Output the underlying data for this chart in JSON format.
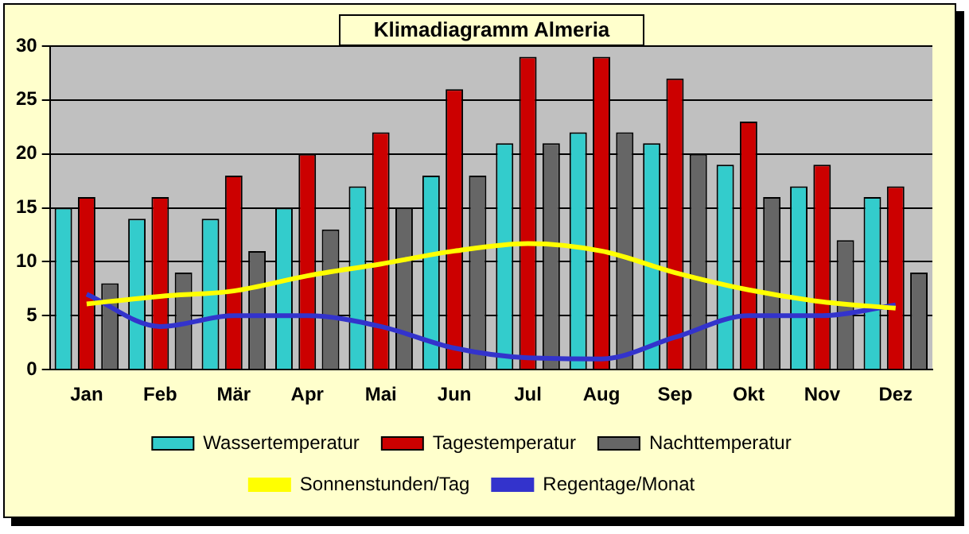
{
  "chart_data": {
    "type": "bar",
    "title": "Klimadiagramm Almeria",
    "categories": [
      "Jan",
      "Feb",
      "Mär",
      "Apr",
      "Mai",
      "Jun",
      "Jul",
      "Aug",
      "Sep",
      "Okt",
      "Nov",
      "Dez"
    ],
    "series": [
      {
        "name": "Wassertemperatur",
        "color": "#33cccc",
        "values": [
          15,
          14,
          14,
          15,
          17,
          18,
          21,
          22,
          21,
          19,
          17,
          16
        ]
      },
      {
        "name": "Tagestemperatur",
        "color": "#cc0000",
        "values": [
          16,
          16,
          18,
          20,
          22,
          26,
          29,
          29,
          27,
          23,
          19,
          17
        ]
      },
      {
        "name": "Nachttemperatur",
        "color": "#666666",
        "values": [
          8,
          9,
          11,
          13,
          15,
          18,
          21,
          22,
          20,
          16,
          12,
          9
        ]
      },
      {
        "name": "Sonnenstunden/Tag",
        "type": "line",
        "color": "#ffff00",
        "values": [
          6.1,
          6.8,
          7.3,
          8.7,
          9.8,
          11,
          11.7,
          11,
          9,
          7.4,
          6.3,
          5.7
        ]
      },
      {
        "name": "Regentage/Monat",
        "type": "line",
        "color": "#3333cc",
        "values": [
          7,
          4,
          5,
          5,
          4,
          2,
          1.1,
          1,
          3,
          5,
          5,
          6
        ]
      }
    ],
    "ylim": [
      0,
      30
    ],
    "yticks": [
      0,
      5,
      10,
      15,
      20,
      25,
      30
    ],
    "grid": "y",
    "legend": "bottom",
    "marker": "none",
    "line_style": "solid"
  }
}
